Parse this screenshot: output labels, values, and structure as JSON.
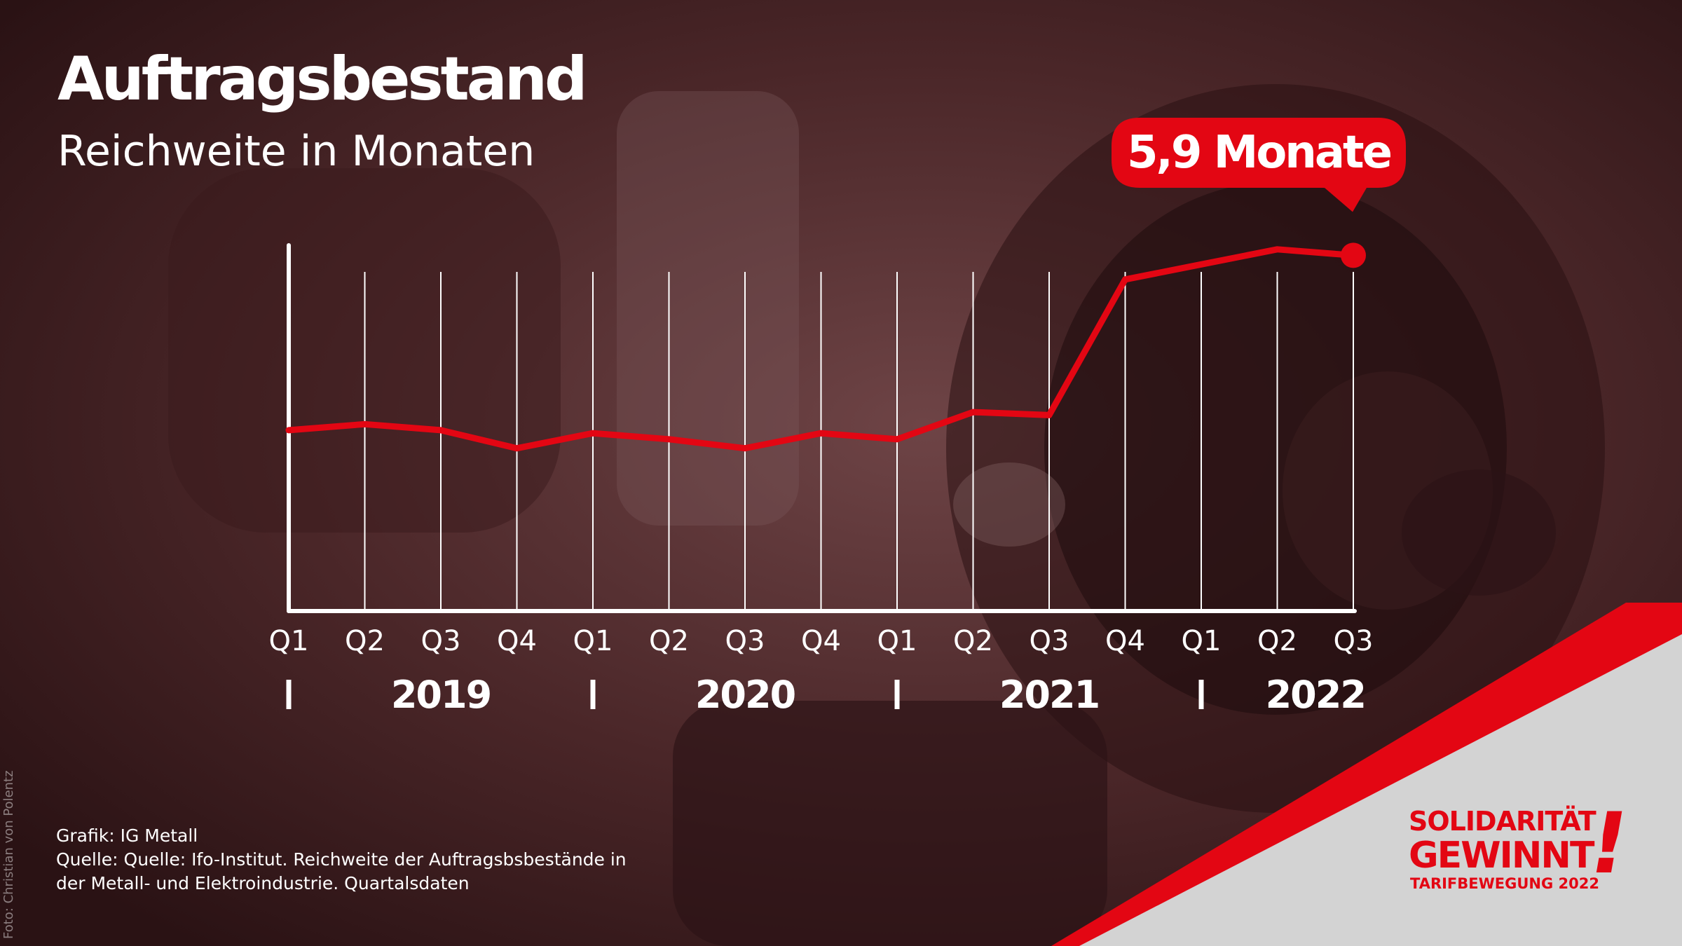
{
  "header": {
    "title": "Auftragsbestand",
    "subtitle": "Reichweite in Monaten"
  },
  "callout": {
    "text": "5,9 Monate"
  },
  "credits": {
    "grafik": "Grafik: IG Metall",
    "quelle_line1": "Quelle: Quelle: Ifo-Institut. Reichweite der Auftragsbsbestände in",
    "quelle_line2": "der Metall- und Elektroindustrie. Quartalsdaten",
    "photo": "Foto: Christian von Polentz"
  },
  "brand": {
    "line1": "SOLIDARITÄT",
    "line2": "GEWINNT",
    "exclamation": "!",
    "line3": "TARIFBEWEGUNG 2022"
  },
  "colors": {
    "accent": "#e30613",
    "text": "#ffffff",
    "panel": "#d3d3d3"
  },
  "chart_data": {
    "type": "line",
    "title": "Auftragsbestand",
    "subtitle": "Reichweite in Monaten",
    "x": [
      "Q1",
      "Q2",
      "Q3",
      "Q4",
      "Q1",
      "Q2",
      "Q3",
      "Q4",
      "Q1",
      "Q2",
      "Q3",
      "Q4",
      "Q1",
      "Q2",
      "Q3"
    ],
    "years": [
      {
        "label": "2019",
        "quarters": [
          "Q1",
          "Q2",
          "Q3",
          "Q4"
        ]
      },
      {
        "label": "2020",
        "quarters": [
          "Q1",
          "Q2",
          "Q3",
          "Q4"
        ]
      },
      {
        "label": "2021",
        "quarters": [
          "Q1",
          "Q2",
          "Q3",
          "Q4"
        ]
      },
      {
        "label": "2022",
        "quarters": [
          "Q1",
          "Q2",
          "Q3"
        ]
      }
    ],
    "series": [
      {
        "values": [
          3.0,
          3.1,
          3.0,
          2.7,
          2.95,
          2.85,
          2.7,
          2.95,
          2.85,
          3.3,
          3.25,
          5.5,
          5.75,
          6.0,
          5.9
        ],
        "color": "#e30613"
      }
    ],
    "ylim": [
      0,
      6.3
    ],
    "y_axis_shown": false,
    "grid": "vertical",
    "last_value_label": "5,9 Monate"
  }
}
